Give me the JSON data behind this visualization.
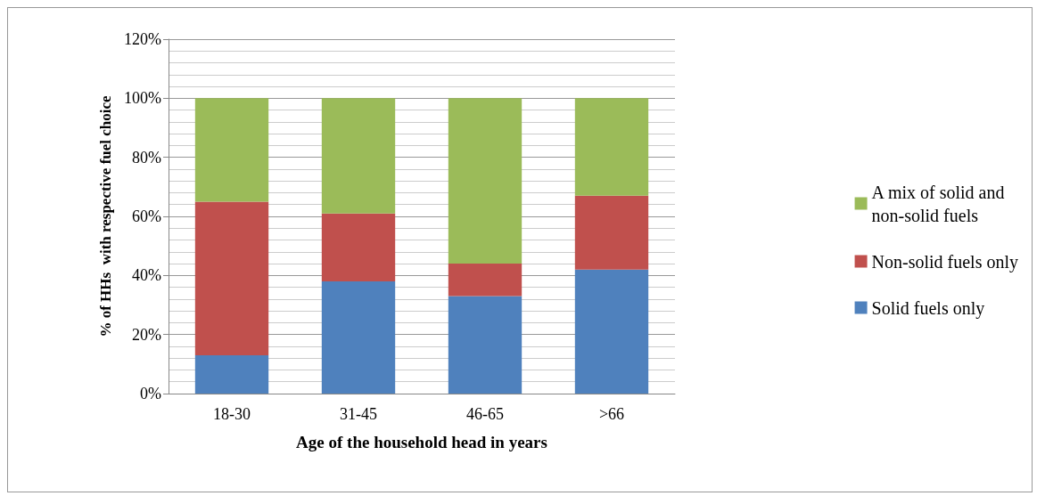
{
  "chart_data": {
    "type": "bar",
    "stacked": true,
    "xlabel": "Age of the household head in years",
    "ylabel": "% of HHs  with respective fuel choice",
    "categories": [
      "18-30",
      "31-45",
      "46-65",
      ">66"
    ],
    "series": [
      {
        "name": "Solid fuels only",
        "color": "#4f81bd",
        "values": [
          13,
          38,
          33,
          42
        ]
      },
      {
        "name": "Non-solid fuels only",
        "color": "#c0504d",
        "values": [
          52,
          23,
          11,
          25
        ]
      },
      {
        "name": "A mix of solid and non-solid fuels",
        "color": "#9bbb59",
        "values": [
          35,
          39,
          56,
          33
        ]
      }
    ],
    "ylim": [
      0,
      120
    ],
    "yticks": [
      {
        "value": 0,
        "label": "0%"
      },
      {
        "value": 20,
        "label": "20%"
      },
      {
        "value": 40,
        "label": "40%"
      },
      {
        "value": 60,
        "label": "60%"
      },
      {
        "value": 80,
        "label": "80%"
      },
      {
        "value": 100,
        "label": "100%"
      },
      {
        "value": 120,
        "label": "120%"
      }
    ],
    "grid": "y",
    "legend": "right"
  }
}
